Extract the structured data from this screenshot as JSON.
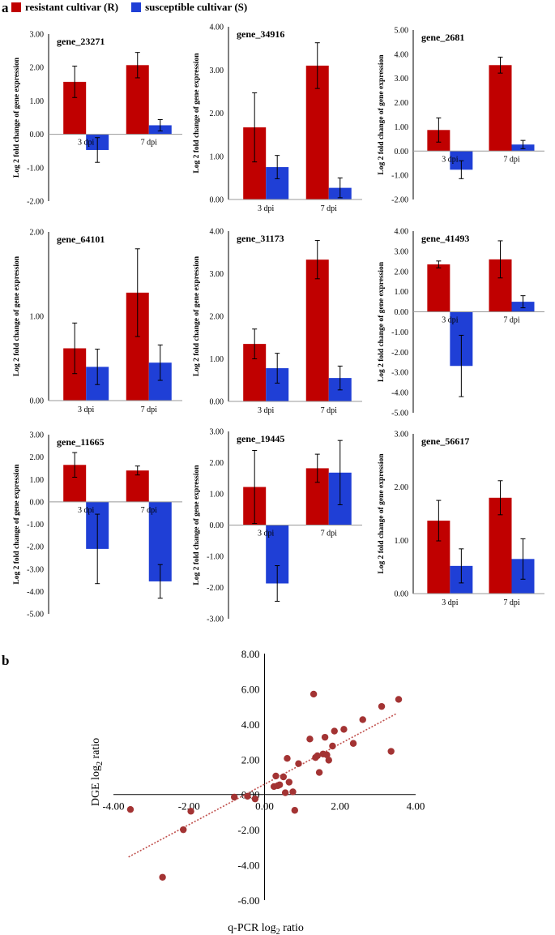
{
  "panel_a_label": "a",
  "panel_b_label": "b",
  "legend": {
    "items": [
      {
        "label": "resistant cultivar (R)",
        "color": "#c00000"
      },
      {
        "label": "susceptible cultivar (S)",
        "color": "#1f3fd6"
      }
    ]
  },
  "colors": {
    "resistant": "#c00000",
    "susceptible": "#1f3fd6",
    "scatter": "#a33333",
    "trend": "#c0504d"
  },
  "chart_data": [
    {
      "type": "bar",
      "title": "gene_23271",
      "ylabel": "Log 2 fold change of gene expression",
      "categories": [
        "3 dpi",
        "7 dpi"
      ],
      "ylim": [
        -2,
        3
      ],
      "ticks": [
        "3.00",
        "2.00",
        "1.00",
        "0.00",
        "-1.00",
        "-2.00"
      ],
      "tick_values": [
        3,
        2,
        1,
        0,
        -1,
        -2
      ],
      "series": [
        {
          "name": "resistant cultivar (R)",
          "values": [
            1.57,
            2.07
          ],
          "errors": [
            0.47,
            0.38
          ]
        },
        {
          "name": "susceptible cultivar (S)",
          "values": [
            -0.47,
            0.27
          ],
          "errors": [
            0.37,
            0.17
          ]
        }
      ]
    },
    {
      "type": "bar",
      "title": "gene_34916",
      "ylabel": "Log 2 fold change of gene expression",
      "categories": [
        "3 dpi",
        "7 dpi"
      ],
      "ylim": [
        0,
        4
      ],
      "ticks": [
        "4.00",
        "3.00",
        "2.00",
        "1.00",
        "0.00"
      ],
      "tick_values": [
        4,
        3,
        2,
        1,
        0
      ],
      "series": [
        {
          "name": "resistant cultivar (R)",
          "values": [
            1.67,
            3.1
          ],
          "errors": [
            0.8,
            0.53
          ]
        },
        {
          "name": "susceptible cultivar (S)",
          "values": [
            0.75,
            0.27
          ],
          "errors": [
            0.27,
            0.23
          ]
        }
      ]
    },
    {
      "type": "bar",
      "title": "gene_2681",
      "ylabel": "Log 2 fold change of gene expression",
      "categories": [
        "3 dpi",
        "7 dpi"
      ],
      "ylim": [
        -2,
        5
      ],
      "ticks": [
        "5.00",
        "4.00",
        "3.00",
        "2.00",
        "1.00",
        "0.00",
        "-1.00",
        "-2.00"
      ],
      "tick_values": [
        5,
        4,
        3,
        2,
        1,
        0,
        -1,
        -2
      ],
      "series": [
        {
          "name": "resistant cultivar (R)",
          "values": [
            0.87,
            3.55
          ],
          "errors": [
            0.5,
            0.33
          ]
        },
        {
          "name": "susceptible cultivar (S)",
          "values": [
            -0.77,
            0.27
          ],
          "errors": [
            0.37,
            0.17
          ]
        }
      ]
    },
    {
      "type": "bar",
      "title": "gene_64101",
      "ylabel": "Log 2 fold change of gene expression",
      "categories": [
        "3 dpi",
        "7 dpi"
      ],
      "ylim": [
        0,
        2
      ],
      "ticks": [
        "2.00",
        "1.00",
        "0.00"
      ],
      "tick_values": [
        2,
        1,
        0
      ],
      "series": [
        {
          "name": "resistant cultivar (R)",
          "values": [
            0.62,
            1.28
          ],
          "errors": [
            0.3,
            0.52
          ]
        },
        {
          "name": "susceptible cultivar (S)",
          "values": [
            0.4,
            0.45
          ],
          "errors": [
            0.21,
            0.21
          ]
        }
      ]
    },
    {
      "type": "bar",
      "title": "gene_31173",
      "ylabel": "Log 2 fold change of gene expression",
      "categories": [
        "3 dpi",
        "7 dpi"
      ],
      "ylim": [
        0,
        4
      ],
      "ticks": [
        "4.00",
        "3.00",
        "2.00",
        "1.00",
        "0.00"
      ],
      "tick_values": [
        4,
        3,
        2,
        1,
        0
      ],
      "series": [
        {
          "name": "resistant cultivar (R)",
          "values": [
            1.35,
            3.33
          ],
          "errors": [
            0.35,
            0.45
          ]
        },
        {
          "name": "susceptible cultivar (S)",
          "values": [
            0.78,
            0.55
          ],
          "errors": [
            0.35,
            0.28
          ]
        }
      ]
    },
    {
      "type": "bar",
      "title": "gene_41493",
      "ylabel": "Log 2 fold change of gene expression",
      "categories": [
        "3 dpi",
        "7 dpi"
      ],
      "ylim": [
        -5,
        4
      ],
      "ticks": [
        "4.00",
        "3.00",
        "2.00",
        "1.00",
        "0.00",
        "-1.00",
        "-2.00",
        "-3.00",
        "-4.00",
        "-5.00"
      ],
      "tick_values": [
        4,
        3,
        2,
        1,
        0,
        -1,
        -2,
        -3,
        -4,
        -5
      ],
      "series": [
        {
          "name": "resistant cultivar (R)",
          "values": [
            2.35,
            2.6
          ],
          "errors": [
            0.17,
            0.92
          ]
        },
        {
          "name": "susceptible cultivar (S)",
          "values": [
            -2.68,
            0.5
          ],
          "errors": [
            1.52,
            0.3
          ]
        }
      ]
    },
    {
      "type": "bar",
      "title": "gene_11665",
      "ylabel": "Log 2 fold change of gene expression",
      "categories": [
        "3 dpi",
        "7 dpi"
      ],
      "ylim": [
        -5,
        3
      ],
      "ticks": [
        "3.00",
        "2.00",
        "1.00",
        "0.00",
        "-1.00",
        "-2.00",
        "-3.00",
        "-4.00",
        "-5.00"
      ],
      "tick_values": [
        3,
        2,
        1,
        0,
        -1,
        -2,
        -3,
        -4,
        -5
      ],
      "series": [
        {
          "name": "resistant cultivar (R)",
          "values": [
            1.65,
            1.4
          ],
          "errors": [
            0.55,
            0.2
          ]
        },
        {
          "name": "susceptible cultivar (S)",
          "values": [
            -2.1,
            -3.55
          ],
          "errors": [
            1.55,
            0.75
          ]
        }
      ]
    },
    {
      "type": "bar",
      "title": "gene_19445",
      "ylabel": "Log 2 fold change of gene expression",
      "categories": [
        "3 dpi",
        "7 dpi"
      ],
      "ylim": [
        -3,
        3
      ],
      "ticks": [
        "3.00",
        "2.00",
        "1.00",
        "0.00",
        "-1.00",
        "-2.00",
        "-3.00"
      ],
      "tick_values": [
        3,
        2,
        1,
        0,
        -1,
        -2,
        -3
      ],
      "series": [
        {
          "name": "resistant cultivar (R)",
          "values": [
            1.22,
            1.82
          ],
          "errors": [
            1.17,
            0.45
          ]
        },
        {
          "name": "susceptible cultivar (S)",
          "values": [
            -1.87,
            1.68
          ],
          "errors": [
            0.57,
            1.03
          ]
        }
      ]
    },
    {
      "type": "bar",
      "title": "gene_56617",
      "ylabel": "Log 2 fold change of gene expression",
      "categories": [
        "3 dpi",
        "7 dpi"
      ],
      "ylim": [
        0,
        3
      ],
      "ticks": [
        "3.00",
        "2.00",
        "1.00",
        "0.00"
      ],
      "tick_values": [
        3,
        2,
        1,
        0
      ],
      "series": [
        {
          "name": "resistant cultivar (R)",
          "values": [
            1.37,
            1.8
          ],
          "errors": [
            0.38,
            0.32
          ]
        },
        {
          "name": "susceptible cultivar (S)",
          "values": [
            0.52,
            0.65
          ],
          "errors": [
            0.32,
            0.38
          ]
        }
      ]
    },
    {
      "type": "scatter",
      "title": "",
      "xlabel_main": "q-PCR log",
      "xlabel_sub": "2",
      "xlabel_tail": " ratio",
      "ylabel_main": "DGE log",
      "ylabel_sub": "2",
      "ylabel_tail": " ratio",
      "xlim": [
        -4,
        4
      ],
      "ylim": [
        -6,
        8
      ],
      "xticks": [
        "-4.00",
        "-2.00",
        "0.00",
        "2.00",
        "4.00"
      ],
      "xtick_values": [
        -4,
        -2,
        0,
        2,
        4
      ],
      "yticks": [
        "8.00",
        "6.00",
        "4.00",
        "2.00",
        "0.00",
        "-2.00",
        "-4.00",
        "-6.00"
      ],
      "ytick_values": [
        8,
        6,
        4,
        2,
        0,
        -2,
        -4,
        -6
      ],
      "trendline": {
        "x": [
          -3.6,
          3.5
        ],
        "y": [
          -3.55,
          4.6
        ]
      },
      "x": [
        -3.55,
        -2.7,
        -2.15,
        -1.95,
        -0.8,
        -0.45,
        -0.25,
        0.25,
        0.3,
        0.35,
        0.4,
        0.5,
        0.55,
        0.6,
        0.65,
        0.75,
        0.8,
        0.9,
        1.2,
        1.3,
        1.35,
        1.4,
        1.45,
        1.55,
        1.6,
        1.65,
        1.7,
        1.8,
        1.85,
        2.1,
        2.35,
        2.6,
        3.1,
        3.35,
        3.55
      ],
      "y": [
        -0.85,
        -4.7,
        -2.0,
        -0.95,
        -0.15,
        -0.1,
        -0.25,
        0.45,
        1.05,
        0.5,
        0.55,
        1.0,
        0.1,
        2.05,
        0.7,
        0.15,
        -0.9,
        1.75,
        3.15,
        5.7,
        2.1,
        2.2,
        1.25,
        2.3,
        3.25,
        2.25,
        1.95,
        2.75,
        3.6,
        3.7,
        2.9,
        4.25,
        5.0,
        2.45,
        5.4
      ]
    }
  ]
}
